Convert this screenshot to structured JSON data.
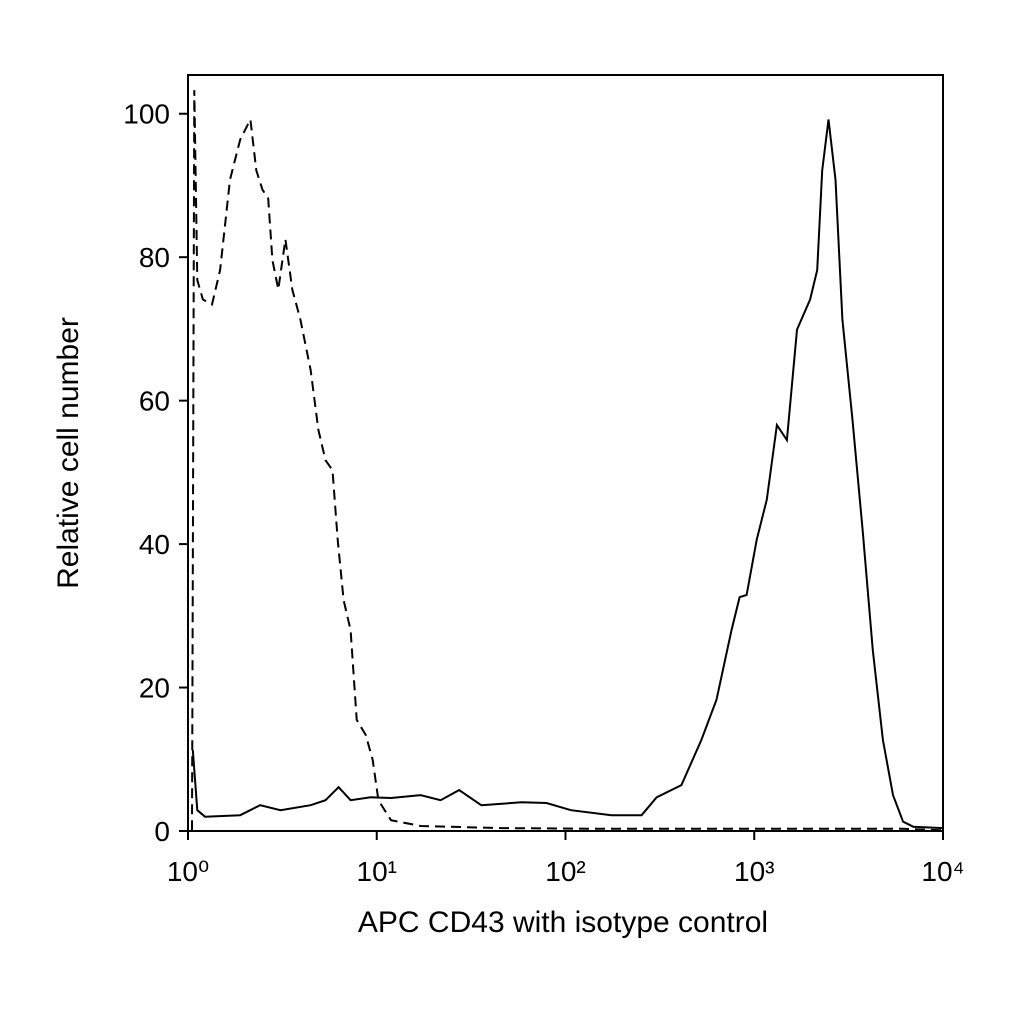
{
  "chart_data": {
    "type": "line",
    "xlabel": "APC CD43 with isotype control",
    "ylabel": "Relative cell number",
    "xscale": "log",
    "xlim": [
      1,
      10000
    ],
    "ylim": [
      0,
      105.4
    ],
    "xticks": [
      {
        "value": 1,
        "label": "10⁰"
      },
      {
        "value": 10,
        "label": "10¹"
      },
      {
        "value": 100,
        "label": "10²"
      },
      {
        "value": 1000,
        "label": "10³"
      },
      {
        "value": 10000,
        "label": "10⁴"
      }
    ],
    "yticks": [
      0,
      20,
      40,
      60,
      80,
      100
    ],
    "series": [
      {
        "color": "#000000",
        "dash": true,
        "x": [
          1.05,
          1.08,
          1.12,
          1.2,
          1.34,
          1.48,
          1.67,
          1.89,
          2.14,
          2.3,
          2.48,
          2.66,
          2.8,
          3.01,
          3.28,
          3.57,
          3.94,
          4.46,
          4.91,
          5.35,
          5.83,
          6.21,
          6.67,
          7.27,
          7.83,
          8.74,
          9.52,
          10.2,
          11.9,
          17.1,
          45.7,
          155,
          529,
          1800,
          6120,
          10000
        ],
        "values": [
          0.1,
          103.3,
          76.8,
          74.1,
          73.4,
          78.2,
          90.8,
          96.4,
          99.2,
          92.1,
          89.4,
          88.2,
          79.6,
          75.5,
          82.5,
          75.5,
          71.3,
          64.3,
          55.9,
          51.7,
          50.3,
          40.6,
          32.2,
          28.0,
          15.5,
          13.4,
          9.9,
          4.3,
          1.5,
          0.7,
          0.4,
          0.3,
          0.3,
          0.3,
          0.3,
          0.1
        ]
      },
      {
        "color": "#000000",
        "dash": false,
        "x": [
          1.06,
          1.12,
          1.23,
          1.89,
          2.41,
          3.09,
          4.46,
          5.35,
          6.28,
          7.27,
          9.29,
          11.9,
          17.1,
          21.8,
          27.3,
          35.8,
          58.4,
          79.3,
          107,
          175,
          253,
          304,
          411,
          525,
          631,
          758,
          836,
          911,
          1030,
          1165,
          1318,
          1490,
          1685,
          1976,
          2154,
          2290,
          2475,
          2694,
          2932,
          3317,
          3752,
          4245,
          4801,
          5432,
          6145,
          6950,
          10000
        ],
        "values": [
          11.3,
          2.9,
          2.0,
          2.2,
          3.6,
          2.9,
          3.6,
          4.3,
          6.1,
          4.3,
          4.7,
          4.6,
          5.0,
          4.3,
          5.7,
          3.6,
          4.0,
          3.9,
          2.9,
          2.2,
          2.2,
          4.7,
          6.4,
          12.7,
          18.3,
          28.0,
          32.6,
          32.9,
          40.6,
          46.2,
          56.6,
          54.5,
          69.9,
          74.1,
          78.2,
          92.1,
          99.2,
          90.8,
          71.3,
          57.3,
          42.0,
          25.2,
          12.7,
          5.0,
          1.3,
          0.6,
          0.4
        ]
      }
    ]
  }
}
